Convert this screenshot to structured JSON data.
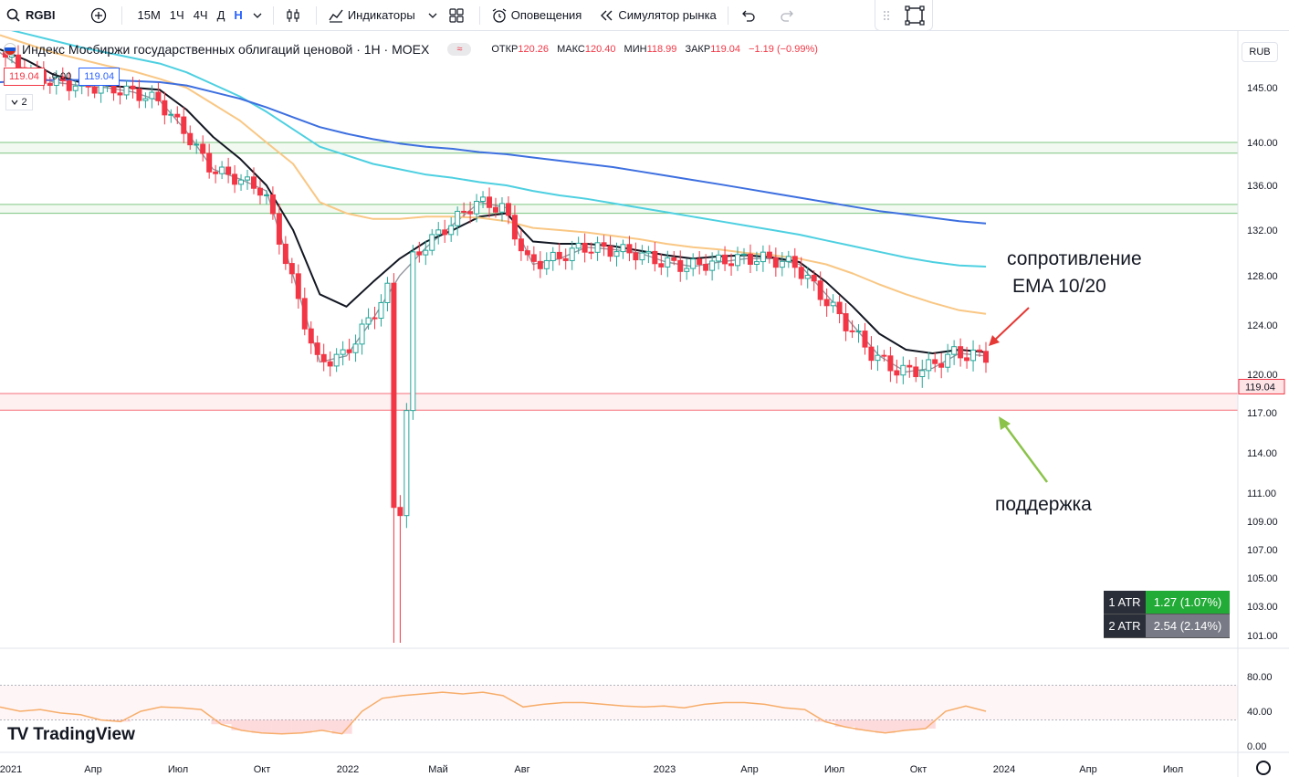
{
  "toolbar": {
    "symbol": "RGBI",
    "intervals": [
      "15М",
      "1Ч",
      "4Ч",
      "Д",
      "Н"
    ],
    "active_interval": "Н",
    "indicators_label": "Индикаторы",
    "alerts_label": "Оповещения",
    "replay_label": "Симулятор рынка"
  },
  "legend": {
    "title": "Индекс Мосбиржи государственных облигаций ценовой · 1Н · MOEX",
    "open_label": "ОТКР",
    "open": "120.26",
    "high_label": "МАКС",
    "high": "120.40",
    "low_label": "МИН",
    "low": "118.99",
    "close_label": "ЗАКР",
    "close": "119.04",
    "change": "−1.19 (−0.99%)",
    "bid": "119.04",
    "spread": "0.00",
    "ask": "119.04",
    "collapsed_count": "2",
    "currency": "RUB"
  },
  "atr": [
    {
      "label": "1 ATR",
      "value": "1.27 (1.07%)"
    },
    {
      "label": "2 ATR",
      "value": "2.54 (2.14%)"
    }
  ],
  "logo_text": "TradingView",
  "colors": {
    "up": "#26a69a",
    "down": "#f23645",
    "ema10": "#9598a1",
    "ema20": "#131722",
    "ema50": "#f9c784",
    "ema100": "#4dd0e1",
    "ema200": "#3d6fe0",
    "support_zone": "#f23645",
    "resistance_zone": "#4caf50",
    "arrow_resist": "#e53935",
    "arrow_support": "#8bc34a",
    "osc": "#f7ad6a"
  },
  "chart_data": {
    "type": "candlestick",
    "title": "Индекс Мосбиржи государственных облигаций ценовой · 1Н · MOEX",
    "price_axis_ticks": [
      145.0,
      140.0,
      136.0,
      132.0,
      128.0,
      124.0,
      120.0,
      117.0,
      114.0,
      111.0,
      109.0,
      107.0,
      105.0,
      103.0,
      101.0
    ],
    "last_price": 119.04,
    "time_axis_labels": [
      "2021",
      "Апр",
      "Июл",
      "Окт",
      "2022",
      "Май",
      "Авг",
      "2023",
      "Апр",
      "Июл",
      "Окт",
      "2024",
      "Апр",
      "Июл"
    ],
    "horizontal_zones": [
      {
        "type": "resistance",
        "from": 139.0,
        "to": 140.0
      },
      {
        "type": "resistance",
        "from": 133.5,
        "to": 134.3
      },
      {
        "type": "support",
        "from": 117.2,
        "to": 118.5
      }
    ],
    "annotations": [
      {
        "text": "сопротивление",
        "line2": "EMA 10/20"
      },
      {
        "text": "поддержка"
      }
    ],
    "ema_series": [
      {
        "period": 10,
        "values": [
          148.2,
          146.5,
          145.5,
          145.2,
          145.0,
          144.6,
          143.8,
          141.0,
          137.5,
          136.6,
          135.5,
          128.0,
          121.0,
          121.5,
          124.5,
          128.0,
          130.5,
          132.5,
          134.5,
          134.0,
          129.0,
          129.5,
          130.5,
          130.3,
          130.0,
          129.2,
          128.8,
          129.2,
          129.5,
          129.5,
          129.0,
          126.5,
          124.0,
          121.5,
          120.2,
          120.5,
          121.7,
          121.5
        ]
      },
      {
        "period": 20,
        "values": [
          148.5,
          147.5,
          146.2,
          145.5,
          145.2,
          145.0,
          144.8,
          143.0,
          140.5,
          138.5,
          136.0,
          132.0,
          126.5,
          125.5,
          127.5,
          129.5,
          131.0,
          132.0,
          133.2,
          133.5,
          131.0,
          130.8,
          130.8,
          130.6,
          130.2,
          129.8,
          129.5,
          129.7,
          129.8,
          129.6,
          129.2,
          127.5,
          125.5,
          123.3,
          122.0,
          121.7,
          122.0,
          121.8
        ]
      },
      {
        "period": 50,
        "values": [
          149.8,
          149.0,
          148.2,
          147.6,
          147.0,
          146.5,
          145.8,
          145.0,
          143.5,
          142.0,
          140.0,
          138.0,
          134.5,
          133.5,
          133.0,
          133.0,
          133.2,
          133.2,
          133.1,
          132.8,
          132.2,
          132.0,
          131.8,
          131.5,
          131.2,
          130.8,
          130.5,
          130.3,
          130.0,
          129.8,
          129.5,
          129.0,
          128.2,
          127.3,
          126.5,
          125.8,
          125.2,
          124.9
        ]
      },
      {
        "period": 100,
        "values": [
          150.5,
          149.9,
          149.3,
          148.7,
          148.2,
          147.7,
          147.2,
          146.4,
          145.3,
          144.2,
          142.8,
          141.2,
          139.6,
          138.8,
          138.0,
          137.5,
          137.0,
          136.7,
          136.3,
          136.0,
          135.5,
          135.1,
          134.8,
          134.4,
          134.0,
          133.6,
          133.2,
          132.8,
          132.4,
          132.0,
          131.6,
          131.1,
          130.6,
          130.1,
          129.6,
          129.2,
          128.9,
          128.8
        ]
      },
      {
        "period": 200,
        "values": [
          145.5,
          145.6,
          145.7,
          145.7,
          145.7,
          145.6,
          145.5,
          145.2,
          144.6,
          144.0,
          143.2,
          142.3,
          141.4,
          140.8,
          140.3,
          139.9,
          139.6,
          139.4,
          139.1,
          138.9,
          138.6,
          138.3,
          138.0,
          137.7,
          137.3,
          136.9,
          136.5,
          136.1,
          135.7,
          135.3,
          134.9,
          134.5,
          134.1,
          133.7,
          133.4,
          133.1,
          132.8,
          132.6
        ]
      }
    ],
    "ema_periods_note": "",
    "oscillator": {
      "axis_ticks": [
        80.0,
        40.0,
        0.0
      ],
      "band": [
        30,
        70
      ],
      "values": [
        45,
        40,
        42,
        38,
        36,
        30,
        28,
        40,
        45,
        44,
        42,
        25,
        18,
        15,
        14,
        15,
        18,
        14,
        40,
        55,
        58,
        60,
        62,
        60,
        62,
        58,
        45,
        48,
        50,
        50,
        48,
        46,
        45,
        46,
        44,
        48,
        50,
        50,
        48,
        44,
        42,
        28,
        22,
        18,
        15,
        18,
        20,
        40,
        46,
        40
      ]
    }
  }
}
